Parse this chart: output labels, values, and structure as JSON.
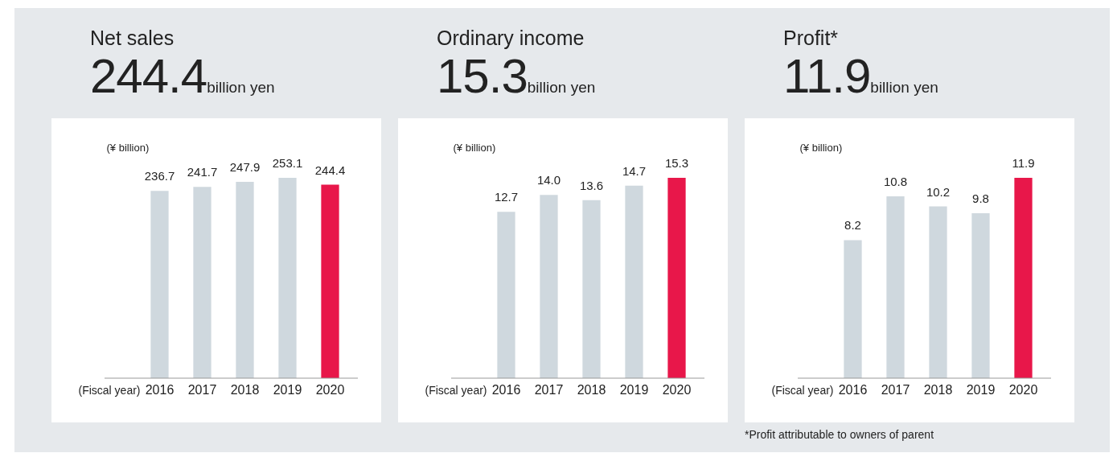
{
  "chart_data": [
    {
      "type": "bar",
      "title": "Net sales",
      "subtitle": "244.4billion yen",
      "ylabel": "(¥ billion)",
      "xlabel": "(Fiscal year)",
      "categories": [
        "2016",
        "2017",
        "2018",
        "2019",
        "2020"
      ],
      "values": [
        236.7,
        241.7,
        247.9,
        253.1,
        244.4
      ],
      "colors": [
        "#cfd8de",
        "#cfd8de",
        "#cfd8de",
        "#cfd8de",
        "#e8174a"
      ],
      "data_labels": true,
      "tick_labels": "x"
    },
    {
      "type": "bar",
      "title": "Ordinary income",
      "subtitle": "15.3billion yen",
      "ylabel": "(¥ billion)",
      "xlabel": "(Fiscal year)",
      "categories": [
        "2016",
        "2017",
        "2018",
        "2019",
        "2020"
      ],
      "values": [
        12.7,
        14.0,
        13.6,
        14.7,
        15.3
      ],
      "value_labels": [
        "12.7",
        "14.0",
        "13.6",
        "14.7",
        "15.3"
      ],
      "colors": [
        "#cfd8de",
        "#cfd8de",
        "#cfd8de",
        "#cfd8de",
        "#e8174a"
      ],
      "tick_labels": "x"
    },
    {
      "type": "bar",
      "title": "Profit*",
      "subtitle": "11.9billion yen",
      "ylabel": "(¥ billion)",
      "xlabel": "(Fiscal year)",
      "categories": [
        "2016",
        "2017",
        "2018",
        "2019",
        "2020"
      ],
      "values": [
        8.2,
        10.8,
        10.2,
        9.8,
        11.9
      ],
      "colors": [
        "#cfd8de",
        "#cfd8de",
        "#cfd8de",
        "#cfd8de",
        "#e8174a"
      ],
      "data_labels": true,
      "tick_labels": "x",
      "annotations": [
        "*Profit attributable to owners of parent"
      ]
    }
  ]
}
